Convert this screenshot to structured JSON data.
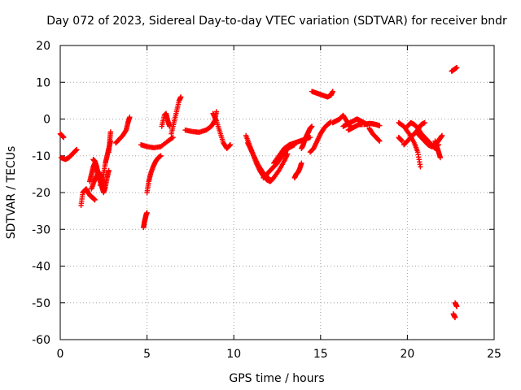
{
  "chart_data": {
    "type": "scatter",
    "title": "Day 072 of 2023, Sidereal Day-to-day VTEC variation (SDTVAR) for receiver bndr",
    "xlabel": "GPS time / hours",
    "ylabel": "SDTVAR / TECUs",
    "xlim": [
      0,
      25
    ],
    "ylim": [
      -60,
      20
    ],
    "xticks": [
      "0",
      "5",
      "10",
      "15",
      "20",
      "25"
    ],
    "yticks": [
      "-60",
      "-50",
      "-40",
      "-30",
      "-20",
      "-10",
      "0",
      "10",
      "20"
    ],
    "grid": true,
    "marker": "plus",
    "color": "#ff0000",
    "segments": [
      {
        "x": [
          0.0,
          0.1,
          0.2
        ],
        "y": [
          -4,
          -4.5,
          -5
        ]
      },
      {
        "x": [
          0.05,
          0.3,
          0.5,
          0.7,
          0.85,
          0.95
        ],
        "y": [
          -10.5,
          -11,
          -10.5,
          -9.5,
          -8.8,
          -8.3
        ]
      },
      {
        "x": [
          1.2,
          1.3,
          1.4,
          1.5,
          1.6,
          1.75,
          1.9,
          2.0
        ],
        "y": [
          -23.5,
          -20,
          -19.5,
          -19,
          -20,
          -21,
          -21.5,
          -22
        ]
      },
      {
        "x": [
          1.7,
          1.8,
          1.9,
          2.0,
          2.1,
          2.2
        ],
        "y": [
          -17,
          -15,
          -13,
          -12,
          -14,
          -16
        ]
      },
      {
        "x": [
          1.8,
          1.95,
          2.1,
          2.25,
          2.4,
          2.5
        ],
        "y": [
          -19,
          -17,
          -15.5,
          -14.5,
          -16,
          -18
        ]
      },
      {
        "x": [
          1.9,
          2.0,
          2.1,
          2.2,
          2.3,
          2.4,
          2.5,
          2.6,
          2.7,
          2.8
        ],
        "y": [
          -11,
          -11.5,
          -13,
          -15,
          -17,
          -18.5,
          -20,
          -18.5,
          -16,
          -14
        ]
      },
      {
        "x": [
          2.3,
          2.5,
          2.6,
          2.7,
          2.8,
          2.9
        ],
        "y": [
          -18,
          -15,
          -12,
          -10,
          -8,
          -6
        ]
      },
      {
        "x": [
          2.8,
          2.85,
          2.9
        ],
        "y": [
          -9,
          -6,
          -3.5
        ]
      },
      {
        "x": [
          3.2,
          3.4,
          3.6,
          3.8,
          3.9,
          4.0
        ],
        "y": [
          -6.5,
          -5.5,
          -4.5,
          -3,
          -1,
          0.5
        ]
      },
      {
        "x": [
          4.8,
          4.85,
          4.9,
          4.95,
          5.0
        ],
        "y": [
          -29.5,
          -28,
          -27,
          -26,
          -25.5
        ]
      },
      {
        "x": [
          4.65,
          5.0,
          5.4,
          5.8,
          6.2,
          6.5
        ],
        "y": [
          -7,
          -7.5,
          -7.8,
          -7.5,
          -6,
          -5
        ]
      },
      {
        "x": [
          5.0,
          5.1,
          5.2,
          5.35,
          5.5,
          5.65,
          5.8
        ],
        "y": [
          -20,
          -17,
          -15,
          -13,
          -11.5,
          -10.5,
          -10
        ]
      },
      {
        "x": [
          5.85,
          6.0,
          6.1,
          6.2,
          6.3
        ],
        "y": [
          -2,
          1,
          1.5,
          -0.5,
          -2
        ]
      },
      {
        "x": [
          6.4,
          6.55,
          6.7,
          6.85,
          6.95
        ],
        "y": [
          -4,
          -1,
          2,
          5,
          6
        ]
      },
      {
        "x": [
          7.2,
          7.6,
          8.0,
          8.4,
          8.7,
          8.9,
          9.0
        ],
        "y": [
          -3,
          -3.4,
          -3.6,
          -3,
          -2,
          -0.5,
          2
        ]
      },
      {
        "x": [
          8.8,
          9.0,
          9.2,
          9.4,
          9.6,
          9.8
        ],
        "y": [
          1.5,
          -0.5,
          -3.5,
          -6.5,
          -8,
          -7
        ]
      },
      {
        "x": [
          10.7,
          10.9,
          11.1,
          11.3,
          11.5,
          11.7,
          11.9,
          12.1,
          12.3,
          12.6,
          12.9,
          13.1
        ],
        "y": [
          -4.5,
          -7,
          -9.5,
          -12,
          -14,
          -15.5,
          -16.5,
          -17,
          -16,
          -14,
          -11.5,
          -9.5
        ]
      },
      {
        "x": [
          10.8,
          11.0,
          11.2,
          11.4,
          11.6,
          11.8,
          12.0
        ],
        "y": [
          -6.5,
          -8.5,
          -10.5,
          -12.5,
          -14,
          -15.5,
          -16
        ]
      },
      {
        "x": [
          11.7,
          11.9,
          12.1,
          12.3,
          12.5,
          12.7,
          12.9,
          13.1,
          13.3,
          13.5
        ],
        "y": [
          -16,
          -15,
          -14,
          -13,
          -12,
          -10.5,
          -9.5,
          -8,
          -7.5,
          -7
        ]
      },
      {
        "x": [
          12.3,
          12.6,
          12.9,
          13.2,
          13.5,
          13.8,
          14.1,
          14.4
        ],
        "y": [
          -12,
          -10,
          -8,
          -7,
          -6.5,
          -6,
          -5.5,
          -5
        ]
      },
      {
        "x": [
          13.5,
          13.6,
          13.7,
          13.8,
          13.9
        ],
        "y": [
          -16,
          -15,
          -14.5,
          -13.5,
          -12
        ]
      },
      {
        "x": [
          13.9,
          14.0,
          14.1,
          14.2,
          14.3,
          14.4,
          14.5
        ],
        "y": [
          -8,
          -7,
          -5.5,
          -4.5,
          -3.5,
          -2.5,
          -2
        ]
      },
      {
        "x": [
          14.4,
          14.6,
          14.8,
          15.0,
          15.2,
          15.4,
          15.6
        ],
        "y": [
          -9,
          -8,
          -6,
          -4,
          -2.5,
          -1.5,
          -0.8
        ]
      },
      {
        "x": [
          14.5,
          14.8,
          15.1,
          15.4,
          15.6,
          15.7
        ],
        "y": [
          7.5,
          7,
          6.5,
          6,
          6.5,
          7.5
        ]
      },
      {
        "x": [
          15.7,
          15.9,
          16.1,
          16.3,
          16.5,
          16.7
        ],
        "y": [
          -1,
          -0.5,
          0,
          1,
          -0.5,
          -2
        ]
      },
      {
        "x": [
          16.3,
          16.5,
          16.7,
          16.9,
          17.1,
          17.3,
          17.5,
          17.7
        ],
        "y": [
          -2,
          -1.5,
          -1,
          -0.5,
          0,
          -0.5,
          -1,
          -1.5
        ]
      },
      {
        "x": [
          16.6,
          16.8,
          17.0,
          17.2,
          17.4
        ],
        "y": [
          -3,
          -2.5,
          -2,
          -1.5,
          -1.5
        ]
      },
      {
        "x": [
          17.5,
          17.8,
          18.0,
          18.2,
          18.4
        ],
        "y": [
          -1.5,
          -1.2,
          -1.3,
          -1.5,
          -1.8
        ]
      },
      {
        "x": [
          17.8,
          18.0,
          18.2,
          18.4
        ],
        "y": [
          -2.5,
          -4,
          -5,
          -6
        ]
      },
      {
        "x": [
          19.5,
          19.8,
          20.1,
          20.4,
          20.6,
          20.75
        ],
        "y": [
          -1,
          -2,
          -4,
          -6.5,
          -9,
          -13
        ]
      },
      {
        "x": [
          19.5,
          19.6,
          19.7
        ],
        "y": [
          -5,
          -5.5,
          -6
        ]
      },
      {
        "x": [
          19.8,
          20.0,
          20.2,
          20.4,
          20.6,
          20.8,
          21.0
        ],
        "y": [
          -7,
          -6,
          -5,
          -4,
          -3,
          -1.5,
          -1
        ]
      },
      {
        "x": [
          20.0,
          20.2,
          20.4,
          20.6,
          20.8,
          21.0,
          21.2,
          21.4,
          21.6
        ],
        "y": [
          -2,
          -1,
          -1.5,
          -2.5,
          -4,
          -5,
          -6,
          -7,
          -8
        ]
      },
      {
        "x": [
          20.6,
          20.8,
          21.0,
          21.2,
          21.4,
          21.6,
          21.8
        ],
        "y": [
          -4,
          -5,
          -6,
          -7,
          -7.5,
          -7.5,
          -7
        ]
      },
      {
        "x": [
          21.6,
          21.7,
          21.8,
          21.9
        ],
        "y": [
          -6,
          -7.5,
          -9,
          -10.5
        ]
      },
      {
        "x": [
          21.7,
          21.85,
          22.0
        ],
        "y": [
          -6.5,
          -5.5,
          -4.5
        ]
      },
      {
        "x": [
          22.55,
          22.7,
          22.85
        ],
        "y": [
          13,
          13.5,
          14
        ]
      },
      {
        "x": [
          22.65,
          22.7,
          22.75
        ],
        "y": [
          -53,
          -53.5,
          -54
        ]
      },
      {
        "x": [
          22.75,
          22.8,
          22.85
        ],
        "y": [
          -50,
          -50.5,
          -51
        ]
      }
    ]
  }
}
